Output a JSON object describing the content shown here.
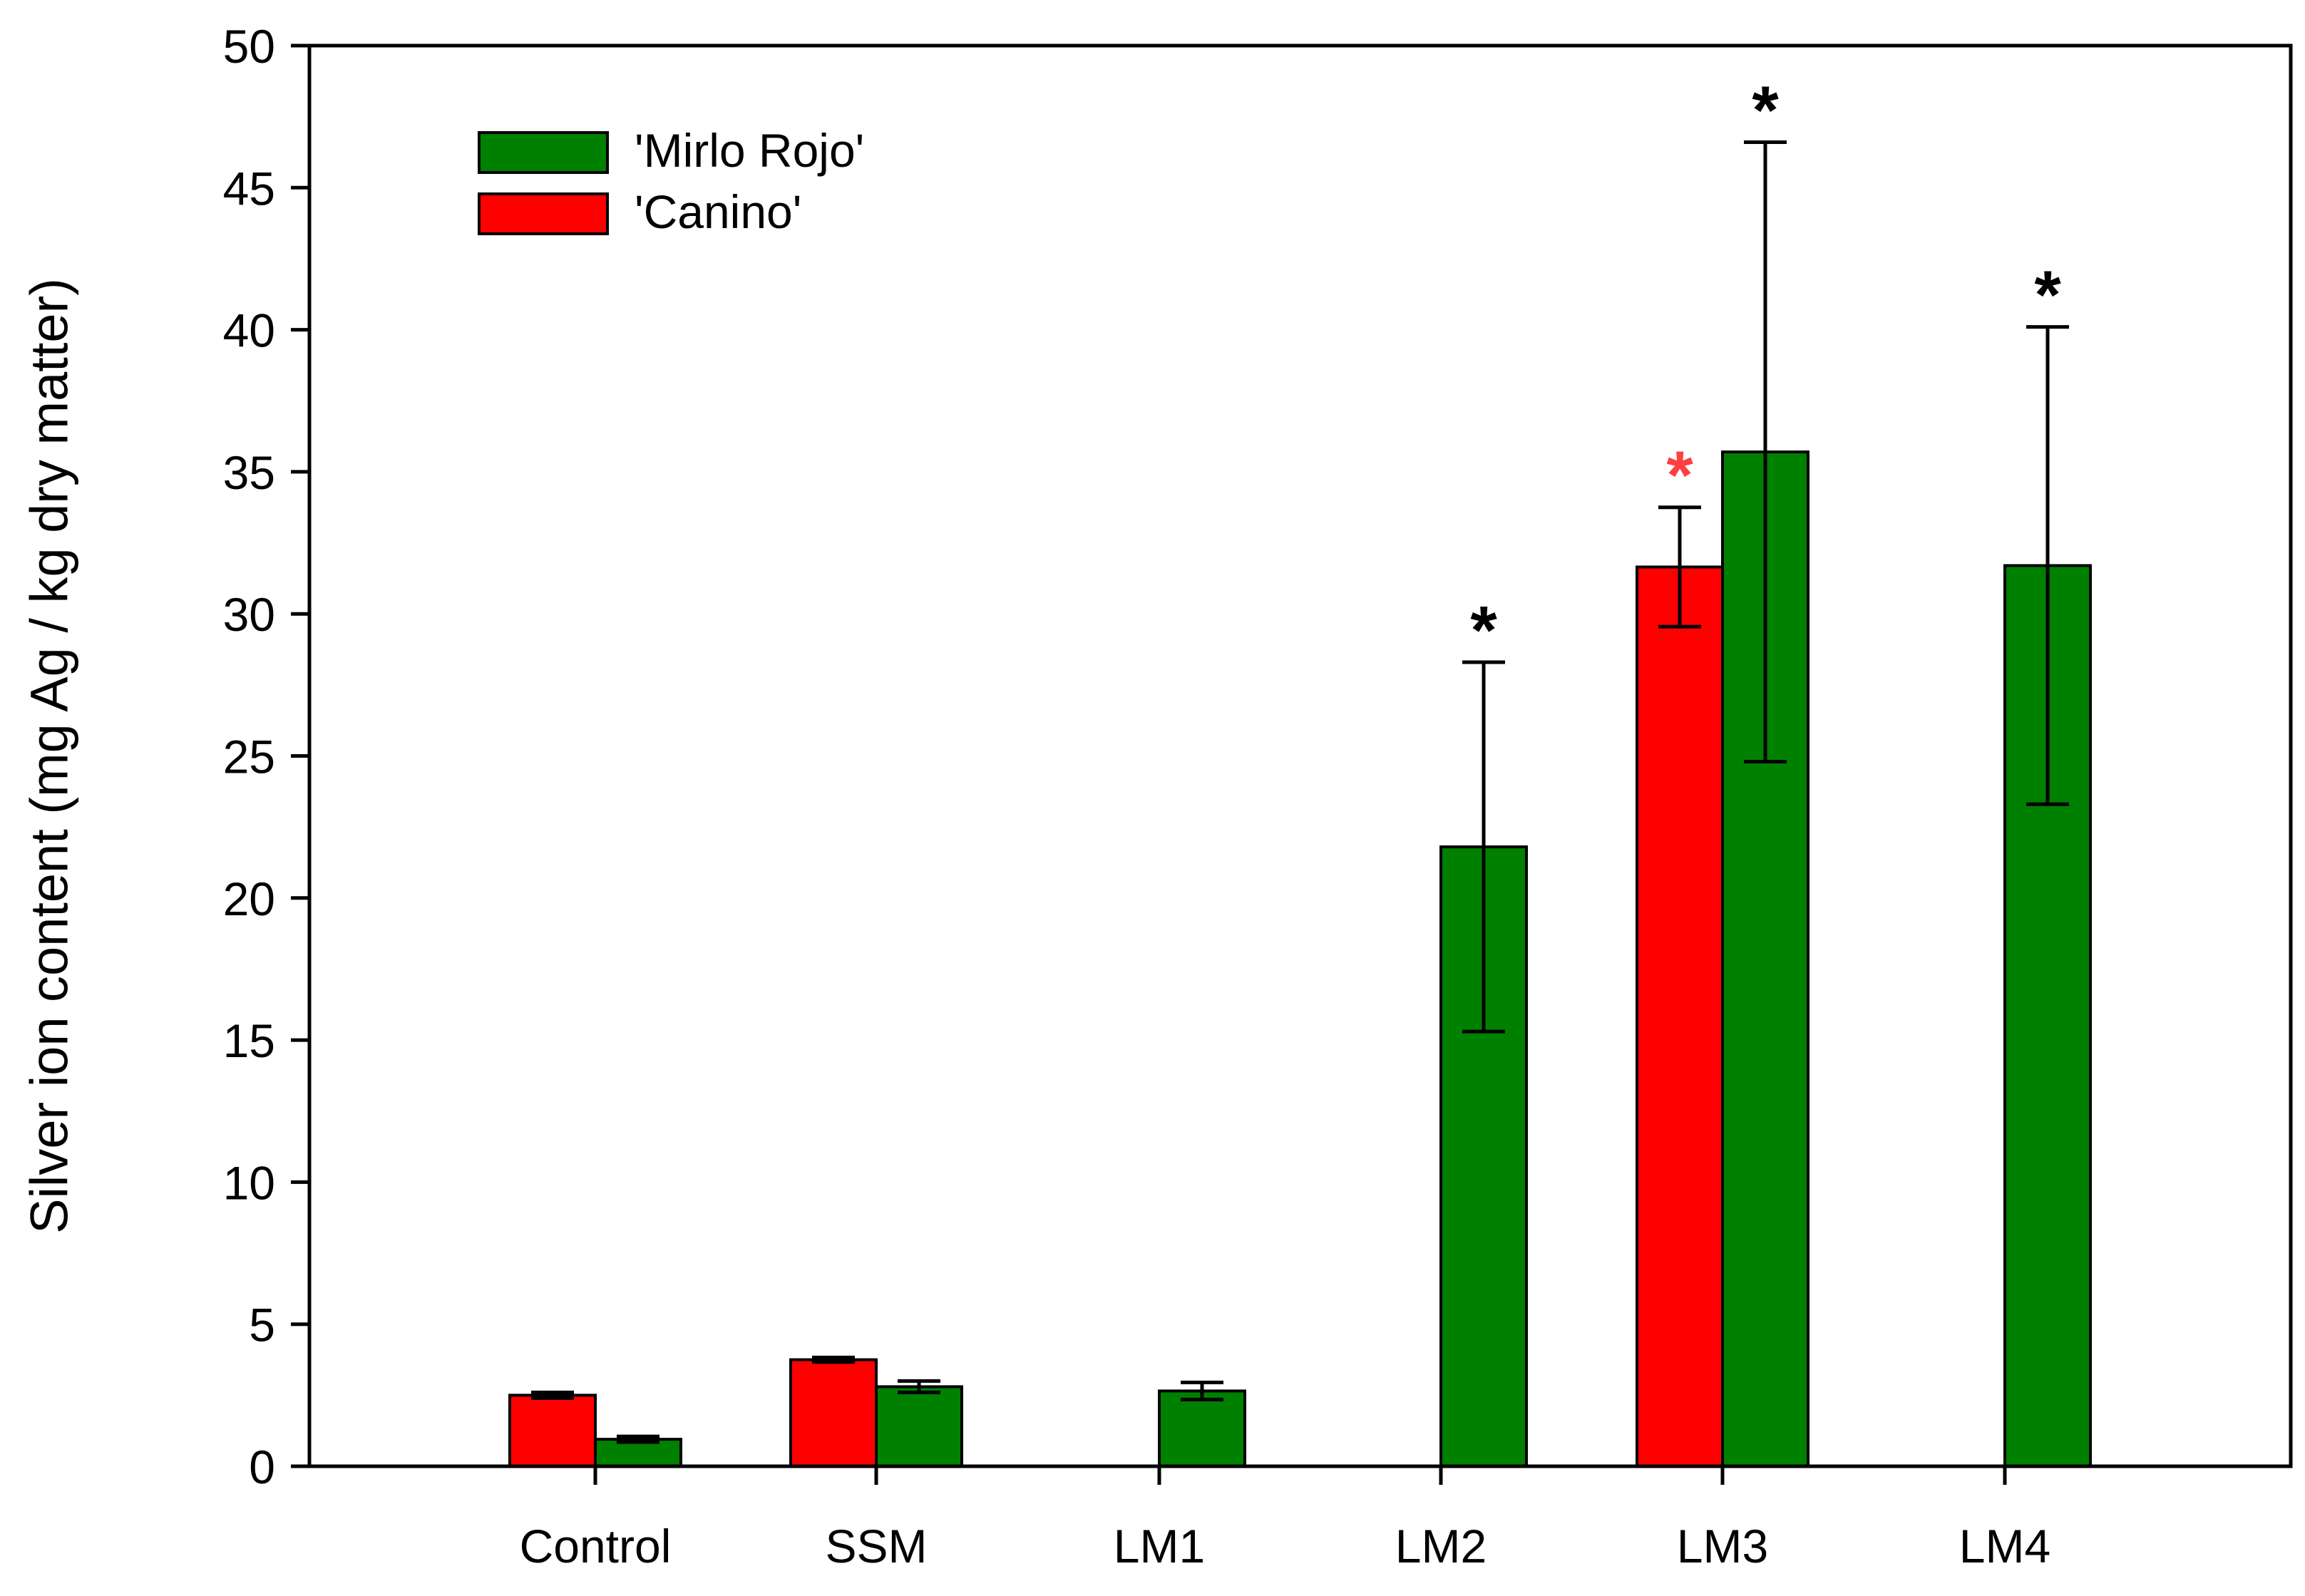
{
  "chart_data": {
    "type": "bar",
    "title": "",
    "xlabel": "",
    "ylabel": "Silver ion content (mg Ag / kg dry matter)",
    "ylim": [
      0,
      50
    ],
    "yticks": [
      0,
      5,
      10,
      15,
      20,
      25,
      30,
      35,
      40,
      45,
      50
    ],
    "categories": [
      "Control",
      "SSM",
      "LM1",
      "LM2",
      "LM3",
      "LM4"
    ],
    "legend_position": "top-left",
    "grid": false,
    "series": [
      {
        "name": "'Mirlo Rojo'",
        "color": "#008000",
        "values": [
          0.95,
          2.8,
          2.65,
          21.8,
          35.7,
          31.7
        ],
        "errors": [
          0.1,
          0.2,
          0.3,
          6.5,
          10.9,
          8.4
        ],
        "significant": [
          false,
          false,
          false,
          true,
          true,
          true
        ]
      },
      {
        "name": "'Canino'",
        "color": "#ff0000",
        "values": [
          2.5,
          3.75,
          null,
          null,
          31.65,
          null
        ],
        "errors": [
          0.1,
          0.08,
          null,
          null,
          2.1,
          null
        ],
        "significant": [
          false,
          false,
          false,
          false,
          true,
          false
        ]
      }
    ],
    "significance_marker": "*",
    "significance_colors": {
      "'Mirlo Rojo'": "#000000",
      "'Canino'": "#ff4040"
    }
  }
}
